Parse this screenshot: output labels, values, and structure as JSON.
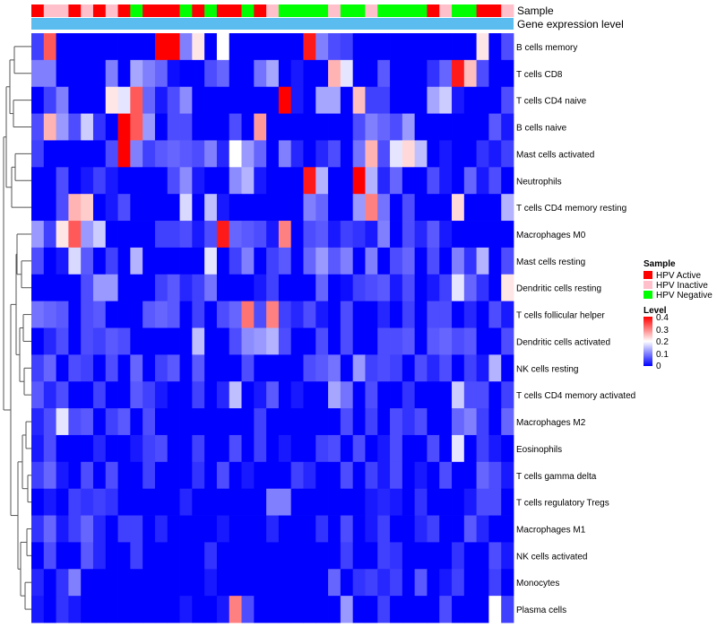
{
  "chart_data": {
    "type": "heatmap",
    "annotation_tracks": [
      "Sample",
      "Gene expression level"
    ],
    "cell_types": [
      "B cells memory",
      "T cells CD8",
      "T cells CD4 naive",
      "B cells naive",
      "Mast cells activated",
      "Neutrophils",
      "T cells CD4 memory resting",
      "Macrophages M0",
      "Mast cells resting",
      "Dendritic cells resting",
      "T cells follicular helper",
      "Dendritic cells activated",
      "NK cells resting",
      "T cells CD4 memory activated",
      "Macrophages M2",
      "Eosinophils",
      "T cells gamma delta",
      "T cells regulatory  Tregs",
      "Macrophages M1",
      "NK cells activated",
      "Monocytes",
      "Plasma cells"
    ],
    "sample_groups": [
      "A",
      "I",
      "I",
      "A",
      "I",
      "A",
      "I",
      "A",
      "N",
      "A",
      "A",
      "A",
      "N",
      "A",
      "N",
      "A",
      "A",
      "N",
      "A",
      "I",
      "N",
      "N",
      "N",
      "N",
      "I",
      "N",
      "N",
      "I",
      "N",
      "N",
      "N",
      "N",
      "A",
      "I",
      "N",
      "N",
      "A",
      "A",
      "I"
    ],
    "sample_colors": {
      "A": "#ff0000",
      "I": "#ffc0cb",
      "N": "#00ff00"
    },
    "gene_expression_color": "#5bbcf0",
    "legend": {
      "sample_title": "Sample",
      "sample_entries": [
        {
          "label": "HPV Active",
          "color": "#ff0000"
        },
        {
          "label": "HPV Inactive",
          "color": "#ffc0cb"
        },
        {
          "label": "HPV Negative",
          "color": "#00ff00"
        }
      ],
      "level_title": "Level",
      "level_ticks": [
        "0.4",
        "0.3",
        "0.2",
        "0.1",
        "0"
      ]
    },
    "level_range": [
      0,
      0.4
    ],
    "color_scale": {
      "low": "#0000ff",
      "mid": "#ffffff",
      "high": "#ff0000"
    },
    "values": [
      [
        0.05,
        0.33,
        0,
        0,
        0,
        0,
        0,
        0,
        0,
        0,
        0.4,
        0.4,
        0.1,
        0.22,
        0,
        0.2,
        0,
        0,
        0,
        0,
        0,
        0,
        0.38,
        0.1,
        0.06,
        0.05,
        0,
        0,
        0,
        0,
        0,
        0,
        0,
        0,
        0,
        0,
        0.22,
        0,
        0.06
      ],
      [
        0.1,
        0.1,
        0,
        0,
        0,
        0,
        0.1,
        0,
        0.13,
        0.1,
        0.08,
        0.01,
        0,
        0,
        0.06,
        0.08,
        0,
        0,
        0.09,
        0.13,
        0,
        0.02,
        0,
        0,
        0.26,
        0.18,
        0,
        0,
        0.07,
        0,
        0,
        0,
        0.04,
        0.08,
        0.38,
        0.25,
        0.06,
        0,
        0
      ],
      [
        0,
        0.05,
        0.1,
        0,
        0,
        0,
        0.22,
        0.18,
        0.33,
        0.08,
        0.02,
        0.06,
        0.11,
        0,
        0,
        0,
        0,
        0,
        0,
        0,
        0.42,
        0.02,
        0,
        0.13,
        0.13,
        0,
        0.25,
        0.05,
        0.05,
        0,
        0,
        0,
        0.13,
        0.16,
        0.02,
        0,
        0,
        0,
        0.06
      ],
      [
        0.06,
        0.26,
        0.12,
        0.06,
        0.16,
        0.04,
        0,
        0.4,
        0.33,
        0.12,
        0,
        0.06,
        0.06,
        0,
        0,
        0,
        0.06,
        0,
        0.28,
        0,
        0,
        0,
        0,
        0,
        0,
        0,
        0.06,
        0.1,
        0.08,
        0.06,
        0.12,
        0,
        0,
        0,
        0,
        0,
        0,
        0.07,
        0.02
      ],
      [
        0.05,
        0,
        0,
        0,
        0,
        0,
        0.06,
        0.4,
        0.1,
        0.05,
        0.07,
        0.08,
        0.07,
        0.06,
        0.1,
        0.03,
        0.2,
        0.12,
        0.08,
        0,
        0.1,
        0.03,
        0,
        0.03,
        0.06,
        0,
        0.09,
        0.26,
        0.06,
        0.18,
        0.23,
        0.15,
        0,
        0.02,
        0,
        0,
        0.04,
        0.02,
        0.05
      ],
      [
        0,
        0,
        0.06,
        0,
        0.02,
        0.05,
        0.02,
        0,
        0,
        0,
        0,
        0.06,
        0.11,
        0.02,
        0,
        0,
        0.11,
        0.14,
        0.02,
        0,
        0,
        0,
        0.38,
        0.14,
        0,
        0,
        0.4,
        0.14,
        0.03,
        0.08,
        0,
        0,
        0.06,
        0.02,
        0,
        0.08,
        0.02,
        0.06,
        0
      ],
      [
        0,
        0,
        0.06,
        0.26,
        0.24,
        0,
        0.02,
        0.06,
        0,
        0,
        0,
        0,
        0.17,
        0,
        0.15,
        0.02,
        0,
        0,
        0,
        0,
        0,
        0,
        0.1,
        0.08,
        0,
        0,
        0.12,
        0.3,
        0.09,
        0,
        0.06,
        0,
        0,
        0,
        0.23,
        0,
        0,
        0,
        0.14
      ],
      [
        0.12,
        0.05,
        0.22,
        0.33,
        0.12,
        0.16,
        0,
        0,
        0,
        0,
        0.05,
        0.05,
        0.06,
        0.02,
        0.06,
        0.38,
        0.08,
        0.07,
        0.06,
        0.02,
        0.3,
        0,
        0.06,
        0.07,
        0.02,
        0.05,
        0.04,
        0.02,
        0.1,
        0,
        0.06,
        0.03,
        0.07,
        0.02,
        0,
        0,
        0,
        0,
        0
      ],
      [
        0.06,
        0,
        0.02,
        0.17,
        0.07,
        0,
        0.05,
        0,
        0.14,
        0,
        0,
        0,
        0,
        0,
        0.18,
        0,
        0.05,
        0.1,
        0,
        0.05,
        0.07,
        0,
        0.08,
        0.12,
        0.07,
        0.1,
        0,
        0.1,
        0,
        0.06,
        0.08,
        0,
        0.06,
        0,
        0.1,
        0.04,
        0.14,
        0,
        0.06
      ],
      [
        0,
        0,
        0,
        0,
        0.06,
        0.12,
        0.12,
        0,
        0,
        0,
        0.05,
        0.07,
        0.03,
        0.05,
        0.09,
        0,
        0,
        0,
        0.02,
        0.05,
        0,
        0,
        0,
        0.08,
        0,
        0.01,
        0.05,
        0.06,
        0.07,
        0.02,
        0.06,
        0,
        0.02,
        0.05,
        0.18,
        0.08,
        0.04,
        0,
        0.22
      ],
      [
        0.09,
        0.08,
        0.07,
        0,
        0.06,
        0.07,
        0,
        0,
        0,
        0.07,
        0.08,
        0.07,
        0,
        0.05,
        0,
        0.06,
        0.08,
        0.31,
        0.06,
        0.3,
        0.05,
        0.03,
        0.06,
        0.02,
        0,
        0.06,
        0,
        0,
        0.03,
        0,
        0.05,
        0,
        0.06,
        0.06,
        0,
        0.03,
        0,
        0.06,
        0.02
      ],
      [
        0,
        0.03,
        0.06,
        0,
        0.06,
        0.05,
        0.07,
        0.06,
        0,
        0,
        0,
        0,
        0,
        0.15,
        0,
        0,
        0.06,
        0.11,
        0.12,
        0.14,
        0.06,
        0,
        0,
        0.06,
        0,
        0.06,
        0,
        0,
        0.06,
        0.06,
        0.07,
        0,
        0.07,
        0.08,
        0.06,
        0.07,
        0,
        0,
        0.06
      ],
      [
        0.05,
        0.08,
        0,
        0.06,
        0.05,
        0,
        0.06,
        0,
        0.08,
        0,
        0.05,
        0.07,
        0,
        0.07,
        0,
        0,
        0,
        0.06,
        0,
        0,
        0,
        0,
        0.06,
        0.07,
        0.09,
        0,
        0.12,
        0.05,
        0.06,
        0.05,
        0,
        0.06,
        0.03,
        0.06,
        0,
        0.05,
        0.02,
        0.14,
        0
      ],
      [
        0.07,
        0.03,
        0.06,
        0,
        0,
        0.05,
        0,
        0,
        0.07,
        0.05,
        0.02,
        0,
        0,
        0.05,
        0,
        0.03,
        0.15,
        0,
        0.02,
        0.07,
        0,
        0.02,
        0,
        0,
        0.13,
        0.09,
        0,
        0.06,
        0,
        0,
        0.04,
        0,
        0,
        0,
        0.16,
        0.06,
        0.06,
        0,
        0.05
      ],
      [
        0.03,
        0.06,
        0.18,
        0.06,
        0.07,
        0,
        0.05,
        0.07,
        0,
        0.06,
        0,
        0,
        0,
        0,
        0,
        0,
        0,
        0,
        0.05,
        0,
        0,
        0,
        0,
        0,
        0,
        0.06,
        0,
        0.05,
        0,
        0.06,
        0.04,
        0.06,
        0,
        0,
        0.08,
        0.1,
        0.05,
        0,
        0.08
      ],
      [
        0.02,
        0.06,
        0,
        0,
        0,
        0.03,
        0,
        0,
        0.02,
        0.05,
        0.06,
        0,
        0,
        0.05,
        0,
        0,
        0.06,
        0,
        0.05,
        0,
        0.02,
        0,
        0,
        0.05,
        0.06,
        0,
        0.06,
        0,
        0.02,
        0.06,
        0,
        0,
        0.06,
        0,
        0.18,
        0,
        0.05,
        0.02,
        0
      ],
      [
        0.05,
        0.08,
        0.02,
        0,
        0.06,
        0,
        0.06,
        0,
        0,
        0.05,
        0,
        0,
        0,
        0.04,
        0,
        0.06,
        0,
        0.02,
        0,
        0,
        0,
        0.05,
        0.03,
        0,
        0,
        0.06,
        0,
        0.05,
        0.02,
        0.06,
        0,
        0.02,
        0,
        0.06,
        0,
        0,
        0.08,
        0.06,
        0.02
      ],
      [
        0,
        0.02,
        0,
        0.05,
        0.04,
        0.05,
        0.04,
        0,
        0,
        0,
        0,
        0,
        0.03,
        0,
        0,
        0,
        0,
        0,
        0,
        0.1,
        0.1,
        0,
        0,
        0,
        0,
        0,
        0,
        0.02,
        0.03,
        0.02,
        0,
        0.04,
        0,
        0,
        0,
        0.02,
        0.06,
        0.06,
        0
      ],
      [
        0.04,
        0.08,
        0.02,
        0.05,
        0.08,
        0.03,
        0,
        0.05,
        0.05,
        0,
        0.03,
        0,
        0,
        0,
        0,
        0.02,
        0,
        0,
        0,
        0.03,
        0,
        0,
        0,
        0.04,
        0,
        0.06,
        0,
        0.02,
        0.05,
        0,
        0,
        0.03,
        0.05,
        0,
        0,
        0.07,
        0.03,
        0,
        0
      ],
      [
        0,
        0.06,
        0,
        0,
        0.07,
        0.03,
        0,
        0,
        0.05,
        0,
        0,
        0,
        0,
        0,
        0.04,
        0,
        0,
        0,
        0,
        0,
        0,
        0,
        0,
        0,
        0,
        0.05,
        0,
        0,
        0.05,
        0.04,
        0,
        0,
        0,
        0,
        0.04,
        0,
        0,
        0.06,
        0.02
      ],
      [
        0.03,
        0,
        0.04,
        0.1,
        0,
        0,
        0,
        0,
        0,
        0,
        0,
        0,
        0,
        0,
        0.02,
        0,
        0,
        0,
        0,
        0,
        0,
        0,
        0,
        0,
        0.08,
        0,
        0.04,
        0.05,
        0.03,
        0.05,
        0,
        0.07,
        0,
        0.02,
        0.05,
        0,
        0,
        0.05,
        0
      ],
      [
        0.02,
        0,
        0.04,
        0.02,
        0,
        0,
        0,
        0,
        0,
        0,
        0,
        0,
        0.02,
        0,
        0,
        0.02,
        0.3,
        0.06,
        0,
        0,
        0,
        0,
        0,
        0,
        0,
        0.12,
        0,
        0,
        0.05,
        0,
        0,
        0,
        0,
        0.06,
        0,
        0,
        0,
        0.2,
        0.05
      ]
    ]
  }
}
